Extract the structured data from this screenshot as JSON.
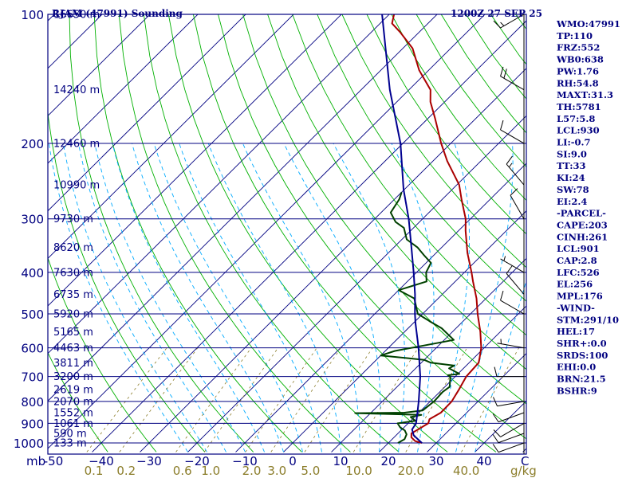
{
  "chart_data": {
    "type": "line",
    "title": {
      "station": "RJAM (47991) Sounding",
      "time": "1200Z 27 SEP 25"
    },
    "xlabel": "",
    "ylabel": "mb",
    "x_unit_label": "C",
    "mix_unit_label": "g/kg",
    "xlim": [
      -50,
      50
    ],
    "ylim_hpa": [
      1000,
      100
    ],
    "pressure_levels": [
      1000,
      900,
      800,
      700,
      600,
      500,
      400,
      300,
      200,
      100
    ],
    "pressure_tick_labels": [
      "1000",
      "900",
      "800",
      "700",
      "600",
      "500",
      "400",
      "300",
      "200",
      "100"
    ],
    "temp_ticks": [
      -50,
      -40,
      -30,
      -20,
      -10,
      0,
      10,
      20,
      30,
      40
    ],
    "temp_tick_labels": [
      "-50",
      "−40",
      "−30",
      "−20",
      "−10",
      "0",
      "10",
      "20",
      "30",
      "40"
    ],
    "mixing_ratio_labels": [
      "0.1",
      "0.2",
      "0.6",
      "1.0",
      "2.0",
      "3.0",
      "5.0",
      "10.0",
      "20.0",
      "40.0"
    ],
    "height_labels": [
      {
        "p": 100,
        "text": "16650 m"
      },
      {
        "p": 150,
        "text": "14240 m"
      },
      {
        "p": 200,
        "text": "12460 m"
      },
      {
        "p": 250,
        "text": "10990 m"
      },
      {
        "p": 300,
        "text": "9730 m"
      },
      {
        "p": 350,
        "text": "8620 m"
      },
      {
        "p": 400,
        "text": "7630 m"
      },
      {
        "p": 450,
        "text": "6735 m"
      },
      {
        "p": 500,
        "text": "5920 m"
      },
      {
        "p": 550,
        "text": "5165 m"
      },
      {
        "p": 600,
        "text": "4463 m"
      },
      {
        "p": 650,
        "text": "3811 m"
      },
      {
        "p": 700,
        "text": "3200 m"
      },
      {
        "p": 750,
        "text": "2619 m"
      },
      {
        "p": 800,
        "text": "2070 m"
      },
      {
        "p": 850,
        "text": "1552 m"
      },
      {
        "p": 900,
        "text": "1061 m"
      },
      {
        "p": 950,
        "text": "590 m"
      },
      {
        "p": 1000,
        "text": "133 m"
      }
    ],
    "series": [
      {
        "name": "Temperature",
        "color": "#aa0000",
        "points": [
          [
            1000,
            27.0
          ],
          [
            990,
            25.2
          ],
          [
            970,
            23.6
          ],
          [
            950,
            22.8
          ],
          [
            925,
            23.5
          ],
          [
            900,
            24.2
          ],
          [
            880,
            23.6
          ],
          [
            850,
            24.6
          ],
          [
            800,
            24.5
          ],
          [
            750,
            23.5
          ],
          [
            700,
            22.3
          ],
          [
            650,
            22.0
          ],
          [
            630,
            21.0
          ],
          [
            600,
            19.4
          ],
          [
            550,
            15.8
          ],
          [
            500,
            11.5
          ],
          [
            460,
            8.0
          ],
          [
            420,
            3.7
          ],
          [
            400,
            1.5
          ],
          [
            360,
            -3.5
          ],
          [
            320,
            -8.5
          ],
          [
            300,
            -11.0
          ],
          [
            270,
            -16.0
          ],
          [
            250,
            -19.5
          ],
          [
            220,
            -27.0
          ],
          [
            200,
            -32.0
          ],
          [
            175,
            -38.5
          ],
          [
            160,
            -43.0
          ],
          [
            150,
            -45.5
          ],
          [
            135,
            -52.0
          ],
          [
            120,
            -58.0
          ],
          [
            110,
            -64.0
          ],
          [
            105,
            -67.5
          ],
          [
            100,
            -69.0
          ]
        ]
      },
      {
        "name": "Dew point",
        "color": "#004000",
        "points": [
          [
            1000,
            22.0
          ],
          [
            980,
            22.6
          ],
          [
            955,
            22.0
          ],
          [
            935,
            20.8
          ],
          [
            920,
            19.2
          ],
          [
            900,
            17.8
          ],
          [
            888,
            21.0
          ],
          [
            870,
            19.2
          ],
          [
            860,
            21.0
          ],
          [
            852,
            6.8
          ],
          [
            850,
            17.0
          ],
          [
            840,
            20.3
          ],
          [
            800,
            20.8
          ],
          [
            760,
            20.6
          ],
          [
            740,
            21.0
          ],
          [
            700,
            19.0
          ],
          [
            695,
            18.2
          ],
          [
            690,
            20.3
          ],
          [
            670,
            17.0
          ],
          [
            660,
            17.5
          ],
          [
            650,
            12.0
          ],
          [
            640,
            10.0
          ],
          [
            625,
            0.0
          ],
          [
            610,
            2.0
          ],
          [
            575,
            12.0
          ],
          [
            540,
            7.0
          ],
          [
            520,
            3.0
          ],
          [
            500,
            -1.0
          ],
          [
            460,
            -5.0
          ],
          [
            440,
            -10.0
          ],
          [
            420,
            -6.0
          ],
          [
            400,
            -8.0
          ],
          [
            380,
            -9.0
          ],
          [
            365,
            -12.0
          ],
          [
            350,
            -15.0
          ],
          [
            335,
            -19.0
          ],
          [
            315,
            -22.0
          ],
          [
            305,
            -25.0
          ],
          [
            290,
            -28.0
          ],
          [
            270,
            -29.0
          ],
          [
            260,
            -30.0
          ]
        ]
      },
      {
        "name": "Parcel",
        "color": "#000090",
        "points": [
          [
            1000,
            27.0
          ],
          [
            960,
            23.7
          ],
          [
            930,
            22.1
          ],
          [
            901,
            21.7
          ],
          [
            850,
            19.7
          ],
          [
            800,
            17.6
          ],
          [
            700,
            12.7
          ],
          [
            600,
            6.3
          ],
          [
            526,
            0.5
          ],
          [
            500,
            -1.6
          ],
          [
            450,
            -5.7
          ],
          [
            400,
            -10.6
          ],
          [
            350,
            -16.3
          ],
          [
            300,
            -22.9
          ],
          [
            256,
            -30.2
          ],
          [
            200,
            -40.5
          ],
          [
            150,
            -54.0
          ],
          [
            100,
            -71.5
          ]
        ]
      }
    ],
    "wind_barbs": [
      {
        "p": 1000,
        "dir": 250,
        "kt": 10
      },
      {
        "p": 950,
        "dir": 250,
        "kt": 10
      },
      {
        "p": 900,
        "dir": 240,
        "kt": 10
      },
      {
        "p": 850,
        "dir": 250,
        "kt": 10
      },
      {
        "p": 800,
        "dir": 260,
        "kt": 10
      },
      {
        "p": 700,
        "dir": 270,
        "kt": 10
      },
      {
        "p": 600,
        "dir": 280,
        "kt": 5
      },
      {
        "p": 500,
        "dir": 300,
        "kt": 10
      },
      {
        "p": 450,
        "dir": 320,
        "kt": 10
      },
      {
        "p": 400,
        "dir": 300,
        "kt": 5
      },
      {
        "p": 300,
        "dir": 330,
        "kt": 10
      },
      {
        "p": 250,
        "dir": 320,
        "kt": 15
      },
      {
        "p": 200,
        "dir": 300,
        "kt": 10
      },
      {
        "p": 150,
        "dir": 300,
        "kt": 20
      },
      {
        "p": 100,
        "dir": 240,
        "kt": 15
      }
    ],
    "indices": [
      "WMO:47991",
      "TP:110",
      "FRZ:552",
      "WB0:638",
      "PW:1.76",
      "RH:54.8",
      "MAXT:31.3",
      "TH:5781",
      "L57:5.8",
      "LCL:930",
      "LI:-0.7",
      "SI:9.0",
      "TT:33",
      "KI:24",
      "SW:78",
      "EI:2.4",
      "-PARCEL-",
      "CAPE:203",
      "CINH:261",
      "LCL:901",
      "CAP:2.8",
      "LFC:526",
      "EL:256",
      "MPL:176",
      "-WIND-",
      "STM:291/10",
      "HEL:17",
      "SHR+:0.0",
      "SRDS:100",
      "EHI:0.0",
      "BRN:21.5",
      "BSHR:9"
    ],
    "colors": {
      "frame": "#000080",
      "isotherm": "#000080",
      "dry_adiabat": "#00b000",
      "moist_adiabat": "#00aaff",
      "mixing_ratio": "#8b7d2a"
    }
  }
}
